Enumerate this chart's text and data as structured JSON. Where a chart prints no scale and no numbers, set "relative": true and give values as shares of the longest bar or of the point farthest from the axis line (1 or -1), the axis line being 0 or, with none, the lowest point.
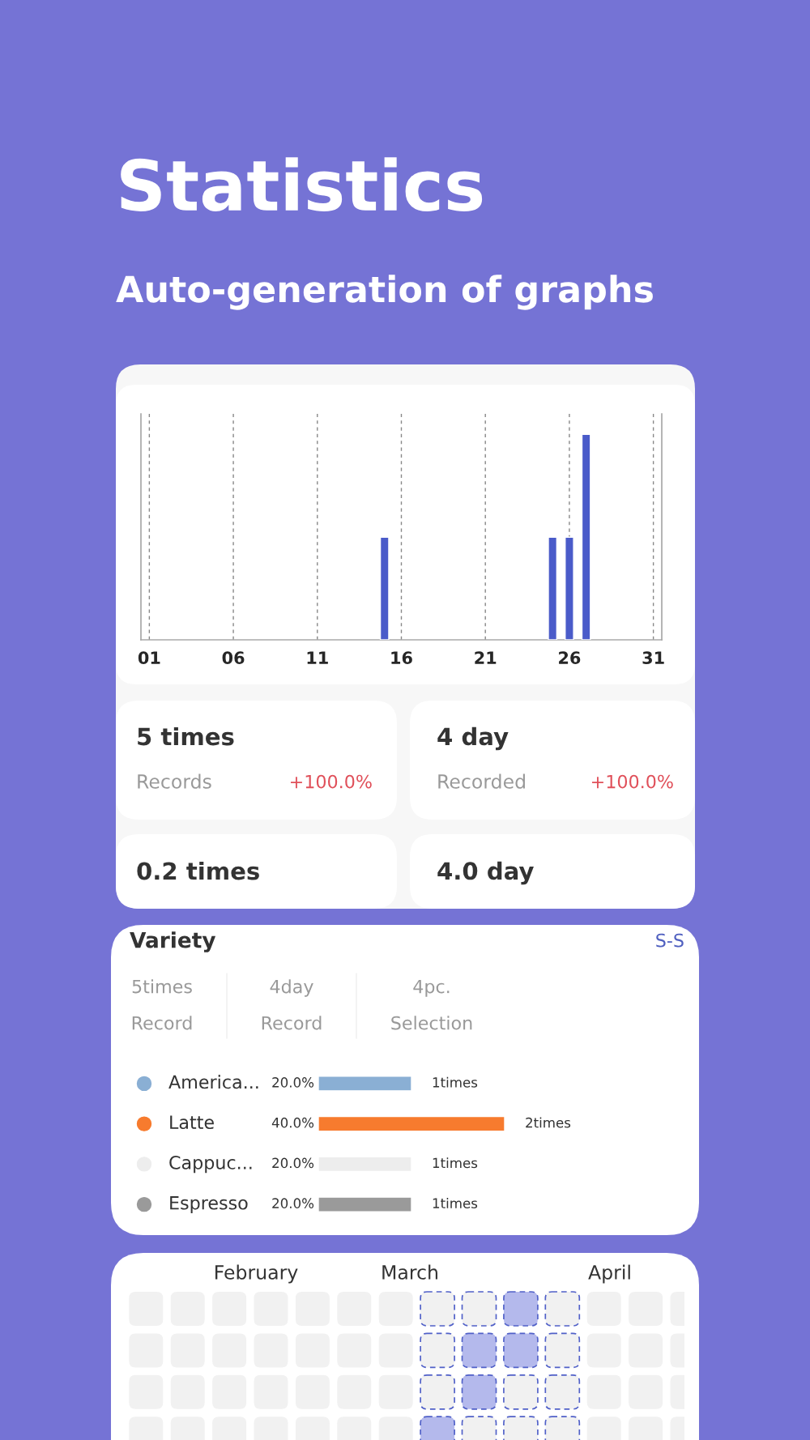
{
  "chart_data": [
    {
      "type": "bar",
      "title": "Statistics",
      "subtitle": "Auto-generation of graphs",
      "x": [
        15,
        25,
        26,
        27
      ],
      "values": [
        0.5,
        0.5,
        0.5,
        1
      ],
      "relative": true,
      "color": "#4a5bc9",
      "xlim": [
        0.5,
        31.5
      ],
      "xticks": [
        {
          "value": 1,
          "label": "01"
        },
        {
          "value": 6,
          "label": "06"
        },
        {
          "value": 11,
          "label": "11"
        },
        {
          "value": 16,
          "label": "16"
        },
        {
          "value": 21,
          "label": "21"
        },
        {
          "value": 26,
          "label": "26"
        },
        {
          "value": 31,
          "label": "31"
        }
      ],
      "grid": "x",
      "tick_labels": "x"
    },
    {
      "type": "other",
      "annotations": [
        "5 times",
        "Records",
        "+100.0%",
        "4 day",
        "Recorded",
        "+100.0%",
        "0.2 times",
        "4.0 day"
      ]
    },
    {
      "type": "bar",
      "orientation": "horizontal",
      "title": "Variety",
      "categories": [
        "America...",
        "Latte",
        "Cappuc...",
        "Espresso"
      ],
      "values": [
        1,
        2,
        1,
        1
      ],
      "colors": [
        "#8aafd4",
        "#f77b2e",
        "#ededed",
        "#9a9a9a"
      ],
      "value_labels": [
        "1times",
        "2times",
        "1times",
        "1times"
      ],
      "annotations": [
        "S-S",
        "5times",
        "Record",
        "4day",
        "Record",
        "4pc.",
        "Selection",
        "20.0%",
        "40.0%",
        "20.0%",
        "20.0%"
      ]
    },
    {
      "type": "other",
      "annotations": [
        "February",
        "March",
        "April"
      ]
    }
  ]
}
